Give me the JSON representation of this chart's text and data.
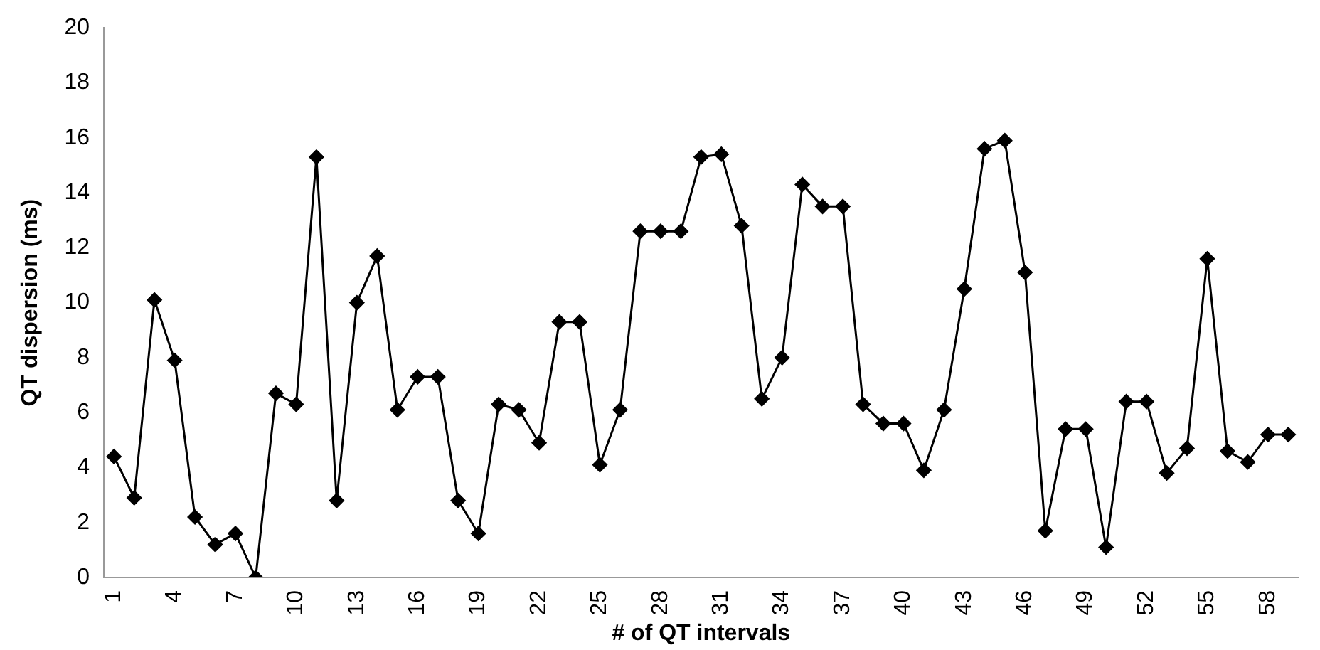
{
  "chart_data": {
    "type": "line",
    "xlabel": "# of QT intervals",
    "ylabel": "QT dispersion (ms)",
    "categories": [
      "1",
      null,
      null,
      "4",
      null,
      null,
      "7",
      null,
      null,
      "10",
      null,
      null,
      "13",
      null,
      null,
      "16",
      null,
      null,
      "19",
      null,
      null,
      "22",
      null,
      null,
      "25",
      null,
      null,
      "28",
      null,
      null,
      "31",
      null,
      null,
      "34",
      null,
      null,
      "37",
      null,
      null,
      "40",
      null,
      null,
      "43",
      null,
      null,
      "46",
      null,
      null,
      "49",
      null,
      null,
      "52",
      null,
      null,
      "55",
      null,
      null,
      "58",
      null
    ],
    "series": [
      {
        "color": "#000000",
        "values": [
          4.4,
          2.9,
          10.1,
          7.9,
          2.2,
          1.2,
          1.6,
          0,
          6.7,
          6.3,
          15.3,
          2.8,
          10.0,
          11.7,
          6.1,
          7.3,
          7.3,
          2.8,
          1.6,
          6.3,
          6.1,
          4.9,
          9.3,
          9.3,
          4.1,
          6.1,
          12.6,
          12.6,
          12.6,
          15.3,
          15.4,
          12.8,
          6.5,
          8.0,
          14.3,
          13.5,
          13.5,
          6.3,
          5.6,
          5.6,
          3.9,
          6.1,
          10.5,
          15.6,
          15.9,
          11.1,
          1.7,
          5.4,
          5.4,
          1.1,
          6.4,
          6.4,
          3.8,
          4.7,
          11.6,
          4.6,
          4.2,
          5.2,
          5.2
        ]
      }
    ],
    "ylim": [
      0,
      20
    ],
    "yticks": [
      0,
      2,
      4,
      6,
      8,
      10,
      12,
      14,
      16,
      18,
      20
    ],
    "grid": false,
    "legend": false,
    "marker": "diamond",
    "line_style": "solid"
  }
}
